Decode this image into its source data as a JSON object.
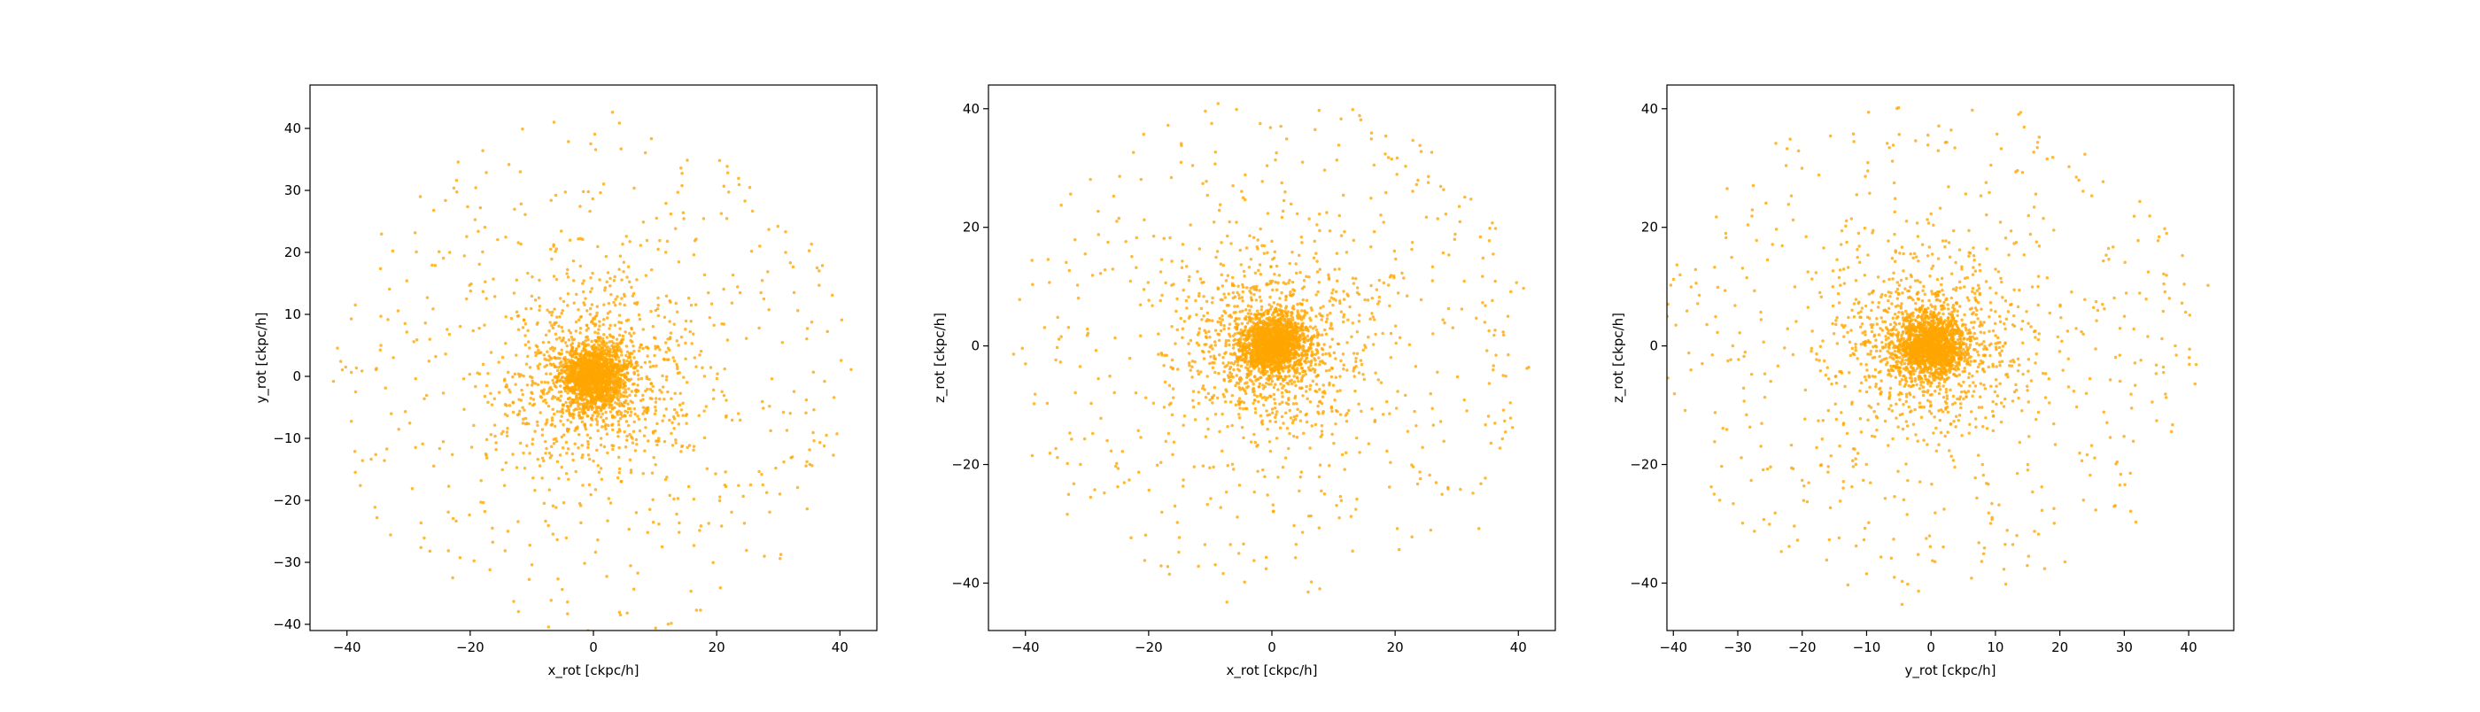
{
  "chart_data": [
    {
      "type": "scatter",
      "title": "",
      "xlabel": "x_rot [ckpc/h]",
      "ylabel": "y_rot [ckpc/h]",
      "xlim": [
        -46,
        46
      ],
      "ylim": [
        -41,
        47
      ],
      "xticks": [
        -40,
        -20,
        0,
        20,
        40
      ],
      "yticks": [
        -40,
        -30,
        -20,
        -10,
        0,
        10,
        20,
        30,
        40
      ],
      "grid": false,
      "color": "#ffa500",
      "projection": "x-y",
      "seed": 11,
      "series": [
        {
          "points": [
            [
              0.0,
              0.0
            ],
            [
              1.2,
              0.8
            ],
            [
              -0.9,
              1.1
            ],
            [
              2.0,
              -1.3
            ],
            [
              -1.7,
              -0.8
            ],
            [
              0.6,
              2.1
            ],
            [
              -2.3,
              0.4
            ],
            [
              1.9,
              1.8
            ],
            [
              3.5,
              0.3
            ],
            [
              -3.2,
              -2.1
            ],
            [
              0.4,
              -3.3
            ],
            [
              4.2,
              2.5
            ],
            [
              -4.5,
              1.6
            ],
            [
              2.8,
              -4.1
            ],
            [
              -1.5,
              4.4
            ],
            [
              5.8,
              -0.7
            ],
            [
              -6.2,
              -3.4
            ],
            [
              1.1,
              6.3
            ],
            [
              -0.3,
              -6.7
            ],
            [
              7.4,
              4.1
            ],
            [
              -7.9,
              2.8
            ],
            [
              8.5,
              -5.2
            ],
            [
              -5.6,
              8.1
            ],
            [
              10.2,
              1.7
            ],
            [
              -11.4,
              -6.9
            ],
            [
              6.7,
              11.8
            ],
            [
              -3.4,
              -12.5
            ],
            [
              13.1,
              -8.4
            ],
            [
              -14.2,
              9.6
            ],
            [
              15.7,
              7.2
            ],
            [
              -17.3,
              -1.5
            ],
            [
              4.9,
              16.9
            ],
            [
              -9.8,
              -16.4
            ],
            [
              19.5,
              -3.6
            ],
            [
              -20.1,
              14.7
            ],
            [
              12.4,
              -19.2
            ],
            [
              -22.9,
              -12.6
            ],
            [
              23.8,
              13.5
            ],
            [
              -25.6,
              3.2
            ],
            [
              8.1,
              24.9
            ],
            [
              -18.7,
              23.4
            ],
            [
              27.3,
              -15.8
            ],
            [
              -29.4,
              -18.1
            ],
            [
              31.2,
              20.0
            ],
            [
              -34.5,
              9.7
            ],
            [
              35.8,
              -10.4
            ],
            [
              -38.6,
              -2.5
            ],
            [
              40.3,
              9.1
            ],
            [
              -42.2,
              -0.8
            ],
            [
              -28.1,
              29.0
            ],
            [
              3.1,
              42.6
            ],
            [
              -6.4,
              41.0
            ],
            [
              -4.2,
              -36.4
            ],
            [
              20.6,
              -34.1
            ],
            [
              30.3,
              -29.4
            ],
            [
              -28.0,
              -27.6
            ],
            [
              13.7,
              29.7
            ],
            [
              -16.8,
              -31.2
            ],
            [
              0.7,
              -26.4
            ],
            [
              24.5,
              -23.7
            ]
          ]
        }
      ]
    },
    {
      "type": "scatter",
      "title": "",
      "xlabel": "x_rot [ckpc/h]",
      "ylabel": "z_rot [ckpc/h]",
      "xlim": [
        -46,
        46
      ],
      "ylim": [
        -48,
        44
      ],
      "xticks": [
        -40,
        -20,
        0,
        20,
        40
      ],
      "yticks": [
        -40,
        -20,
        0,
        20,
        40
      ],
      "grid": false,
      "color": "#ffa500",
      "projection": "x-z",
      "seed": 23,
      "series": [
        {
          "points": [
            [
              0.0,
              0.0
            ],
            [
              1.4,
              1.9
            ],
            [
              -1.2,
              -1.5
            ],
            [
              2.3,
              -0.8
            ],
            [
              -2.1,
              2.4
            ],
            [
              0.5,
              -2.9
            ],
            [
              3.2,
              3.1
            ],
            [
              -3.6,
              -0.6
            ],
            [
              4.8,
              -3.7
            ],
            [
              -4.4,
              4.6
            ],
            [
              1.7,
              5.9
            ],
            [
              -0.9,
              -6.3
            ],
            [
              6.5,
              1.2
            ],
            [
              -6.8,
              -4.5
            ],
            [
              7.9,
              6.4
            ],
            [
              -8.3,
              7.8
            ],
            [
              2.7,
              -9.1
            ],
            [
              10.4,
              -5.3
            ],
            [
              -10.9,
              2.6
            ],
            [
              5.6,
              11.7
            ],
            [
              -12.7,
              -10.3
            ],
            [
              13.9,
              9.8
            ],
            [
              -14.6,
              13.2
            ],
            [
              4.1,
              -15.4
            ],
            [
              16.7,
              -12.8
            ],
            [
              -17.2,
              -16.1
            ],
            [
              11.3,
              18.6
            ],
            [
              -19.4,
              6.8
            ],
            [
              20.8,
              1.4
            ],
            [
              -21.6,
              -21.3
            ],
            [
              8.9,
              22.5
            ],
            [
              -23.7,
              17.6
            ],
            [
              24.1,
              -22.4
            ],
            [
              -26.3,
              -5.1
            ],
            [
              27.8,
              15.7
            ],
            [
              -29.1,
              11.9
            ],
            [
              30.6,
              -24.2
            ],
            [
              -32.8,
              -14.7
            ],
            [
              34.2,
              7.3
            ],
            [
              -36.9,
              3.1
            ],
            [
              38.7,
              -9.6
            ],
            [
              -40.5,
              -0.4
            ],
            [
              41.4,
              -3.8
            ],
            [
              -10.8,
              39.6
            ],
            [
              -1.9,
              37.5
            ],
            [
              6.4,
              -39.8
            ],
            [
              -7.3,
              -43.2
            ],
            [
              18.5,
              35.4
            ],
            [
              -24.7,
              28.6
            ],
            [
              27.4,
              26.9
            ],
            [
              -33.2,
              -28.4
            ],
            [
              13.1,
              -34.6
            ],
            [
              -16.9,
              -37.2
            ],
            [
              33.6,
              -30.8
            ],
            [
              21.7,
              30.3
            ],
            [
              -28.2,
              22.7
            ],
            [
              2.4,
              34.9
            ],
            [
              -4.6,
              -33.4
            ],
            [
              36.3,
              19.8
            ],
            [
              -38.9,
              -18.5
            ]
          ]
        }
      ]
    },
    {
      "type": "scatter",
      "title": "",
      "xlabel": "y_rot [ckpc/h]",
      "ylabel": "z_rot [ckpc/h]",
      "xlim": [
        -41,
        47
      ],
      "ylim": [
        -48,
        44
      ],
      "xticks": [
        -40,
        -30,
        -20,
        -10,
        0,
        10,
        20,
        30,
        40
      ],
      "yticks": [
        -40,
        -20,
        0,
        20,
        40
      ],
      "grid": false,
      "color": "#ffa500",
      "projection": "y-z",
      "seed": 37,
      "series": [
        {
          "points": [
            [
              0.0,
              0.0
            ],
            [
              1.1,
              1.6
            ],
            [
              -1.4,
              -1.1
            ],
            [
              2.2,
              -1.6
            ],
            [
              -2.6,
              1.9
            ],
            [
              0.7,
              -2.8
            ],
            [
              3.1,
              2.6
            ],
            [
              -3.4,
              -0.4
            ],
            [
              4.4,
              -3.2
            ],
            [
              -4.1,
              4.3
            ],
            [
              1.9,
              5.4
            ],
            [
              -1.2,
              -6.1
            ],
            [
              6.2,
              0.9
            ],
            [
              -6.6,
              -4.1
            ],
            [
              7.8,
              6.2
            ],
            [
              -8.1,
              7.3
            ],
            [
              2.5,
              -8.9
            ],
            [
              10.1,
              -5.7
            ],
            [
              -10.6,
              2.2
            ],
            [
              5.3,
              11.4
            ],
            [
              -12.3,
              -9.8
            ],
            [
              13.7,
              9.4
            ],
            [
              -14.1,
              12.8
            ],
            [
              4.8,
              -15.1
            ],
            [
              16.3,
              -12.4
            ],
            [
              -16.9,
              -15.7
            ],
            [
              11.6,
              18.2
            ],
            [
              -19.1,
              6.5
            ],
            [
              20.3,
              0.8
            ],
            [
              -21.4,
              -20.7
            ],
            [
              8.6,
              22.1
            ],
            [
              -23.1,
              16.9
            ],
            [
              24.7,
              -21.8
            ],
            [
              -25.8,
              -4.7
            ],
            [
              27.2,
              15.3
            ],
            [
              -28.6,
              11.5
            ],
            [
              30.1,
              -23.4
            ],
            [
              -31.7,
              -14.1
            ],
            [
              33.4,
              7.9
            ],
            [
              -34.8,
              3.6
            ],
            [
              36.5,
              -8.7
            ],
            [
              -37.6,
              -1.2
            ],
            [
              40.1,
              -3.1
            ],
            [
              43.0,
              10.2
            ],
            [
              -9.7,
              39.4
            ],
            [
              1.2,
              37.1
            ],
            [
              -4.5,
              -43.6
            ],
            [
              -12.9,
              -40.3
            ],
            [
              16.8,
              35.2
            ],
            [
              -22.5,
              30.4
            ],
            [
              23.6,
              26.1
            ],
            [
              -30.7,
              -26.6
            ],
            [
              12.7,
              -33.5
            ],
            [
              -16.2,
              -36.1
            ],
            [
              31.8,
              -29.7
            ],
            [
              18.9,
              31.8
            ],
            [
              -27.8,
              21.9
            ],
            [
              3.7,
              33.4
            ],
            [
              -5.8,
              -32.6
            ],
            [
              35.4,
              18.4
            ]
          ]
        }
      ]
    }
  ]
}
